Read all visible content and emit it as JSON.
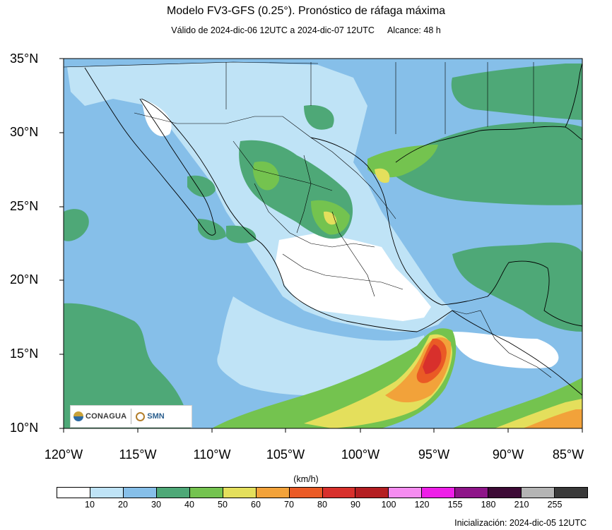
{
  "header": {
    "title": "Modelo FV3-GFS (0.25°). Pronóstico de ráfaga máxima",
    "valid": "Válido de 2024-dic-06 12UTC a 2024-dic-07 12UTC",
    "range": "Alcance: 48 h"
  },
  "map": {
    "lat_labels": [
      "35°N",
      "30°N",
      "25°N",
      "20°N",
      "15°N",
      "10°N"
    ],
    "lon_labels": [
      "120°W",
      "115°W",
      "110°W",
      "105°W",
      "100°W",
      "95°W",
      "90°W",
      "85°W"
    ],
    "extent": {
      "lon": [
        -120,
        -85
      ],
      "lat": [
        10,
        35
      ]
    }
  },
  "colorbar": {
    "units": "(km/h)",
    "colors": [
      "#ffffff",
      "#bfe3f6",
      "#86bfe9",
      "#4ea877",
      "#74c34f",
      "#e4df5c",
      "#f2a23a",
      "#ea5a25",
      "#d8302c",
      "#b41e22",
      "#f58cf0",
      "#ee1ee8",
      "#8e1589",
      "#3d0a36",
      "#b4b4b4",
      "#3a3a3a"
    ],
    "ticks": [
      "10",
      "20",
      "30",
      "40",
      "50",
      "60",
      "70",
      "80",
      "90",
      "100",
      "120",
      "155",
      "180",
      "210",
      "255"
    ]
  },
  "footer": {
    "init": "Inicialización: 2024-dic-05 12UTC"
  },
  "logos": {
    "conagua": "CONAGUA",
    "smn": "SMN"
  }
}
